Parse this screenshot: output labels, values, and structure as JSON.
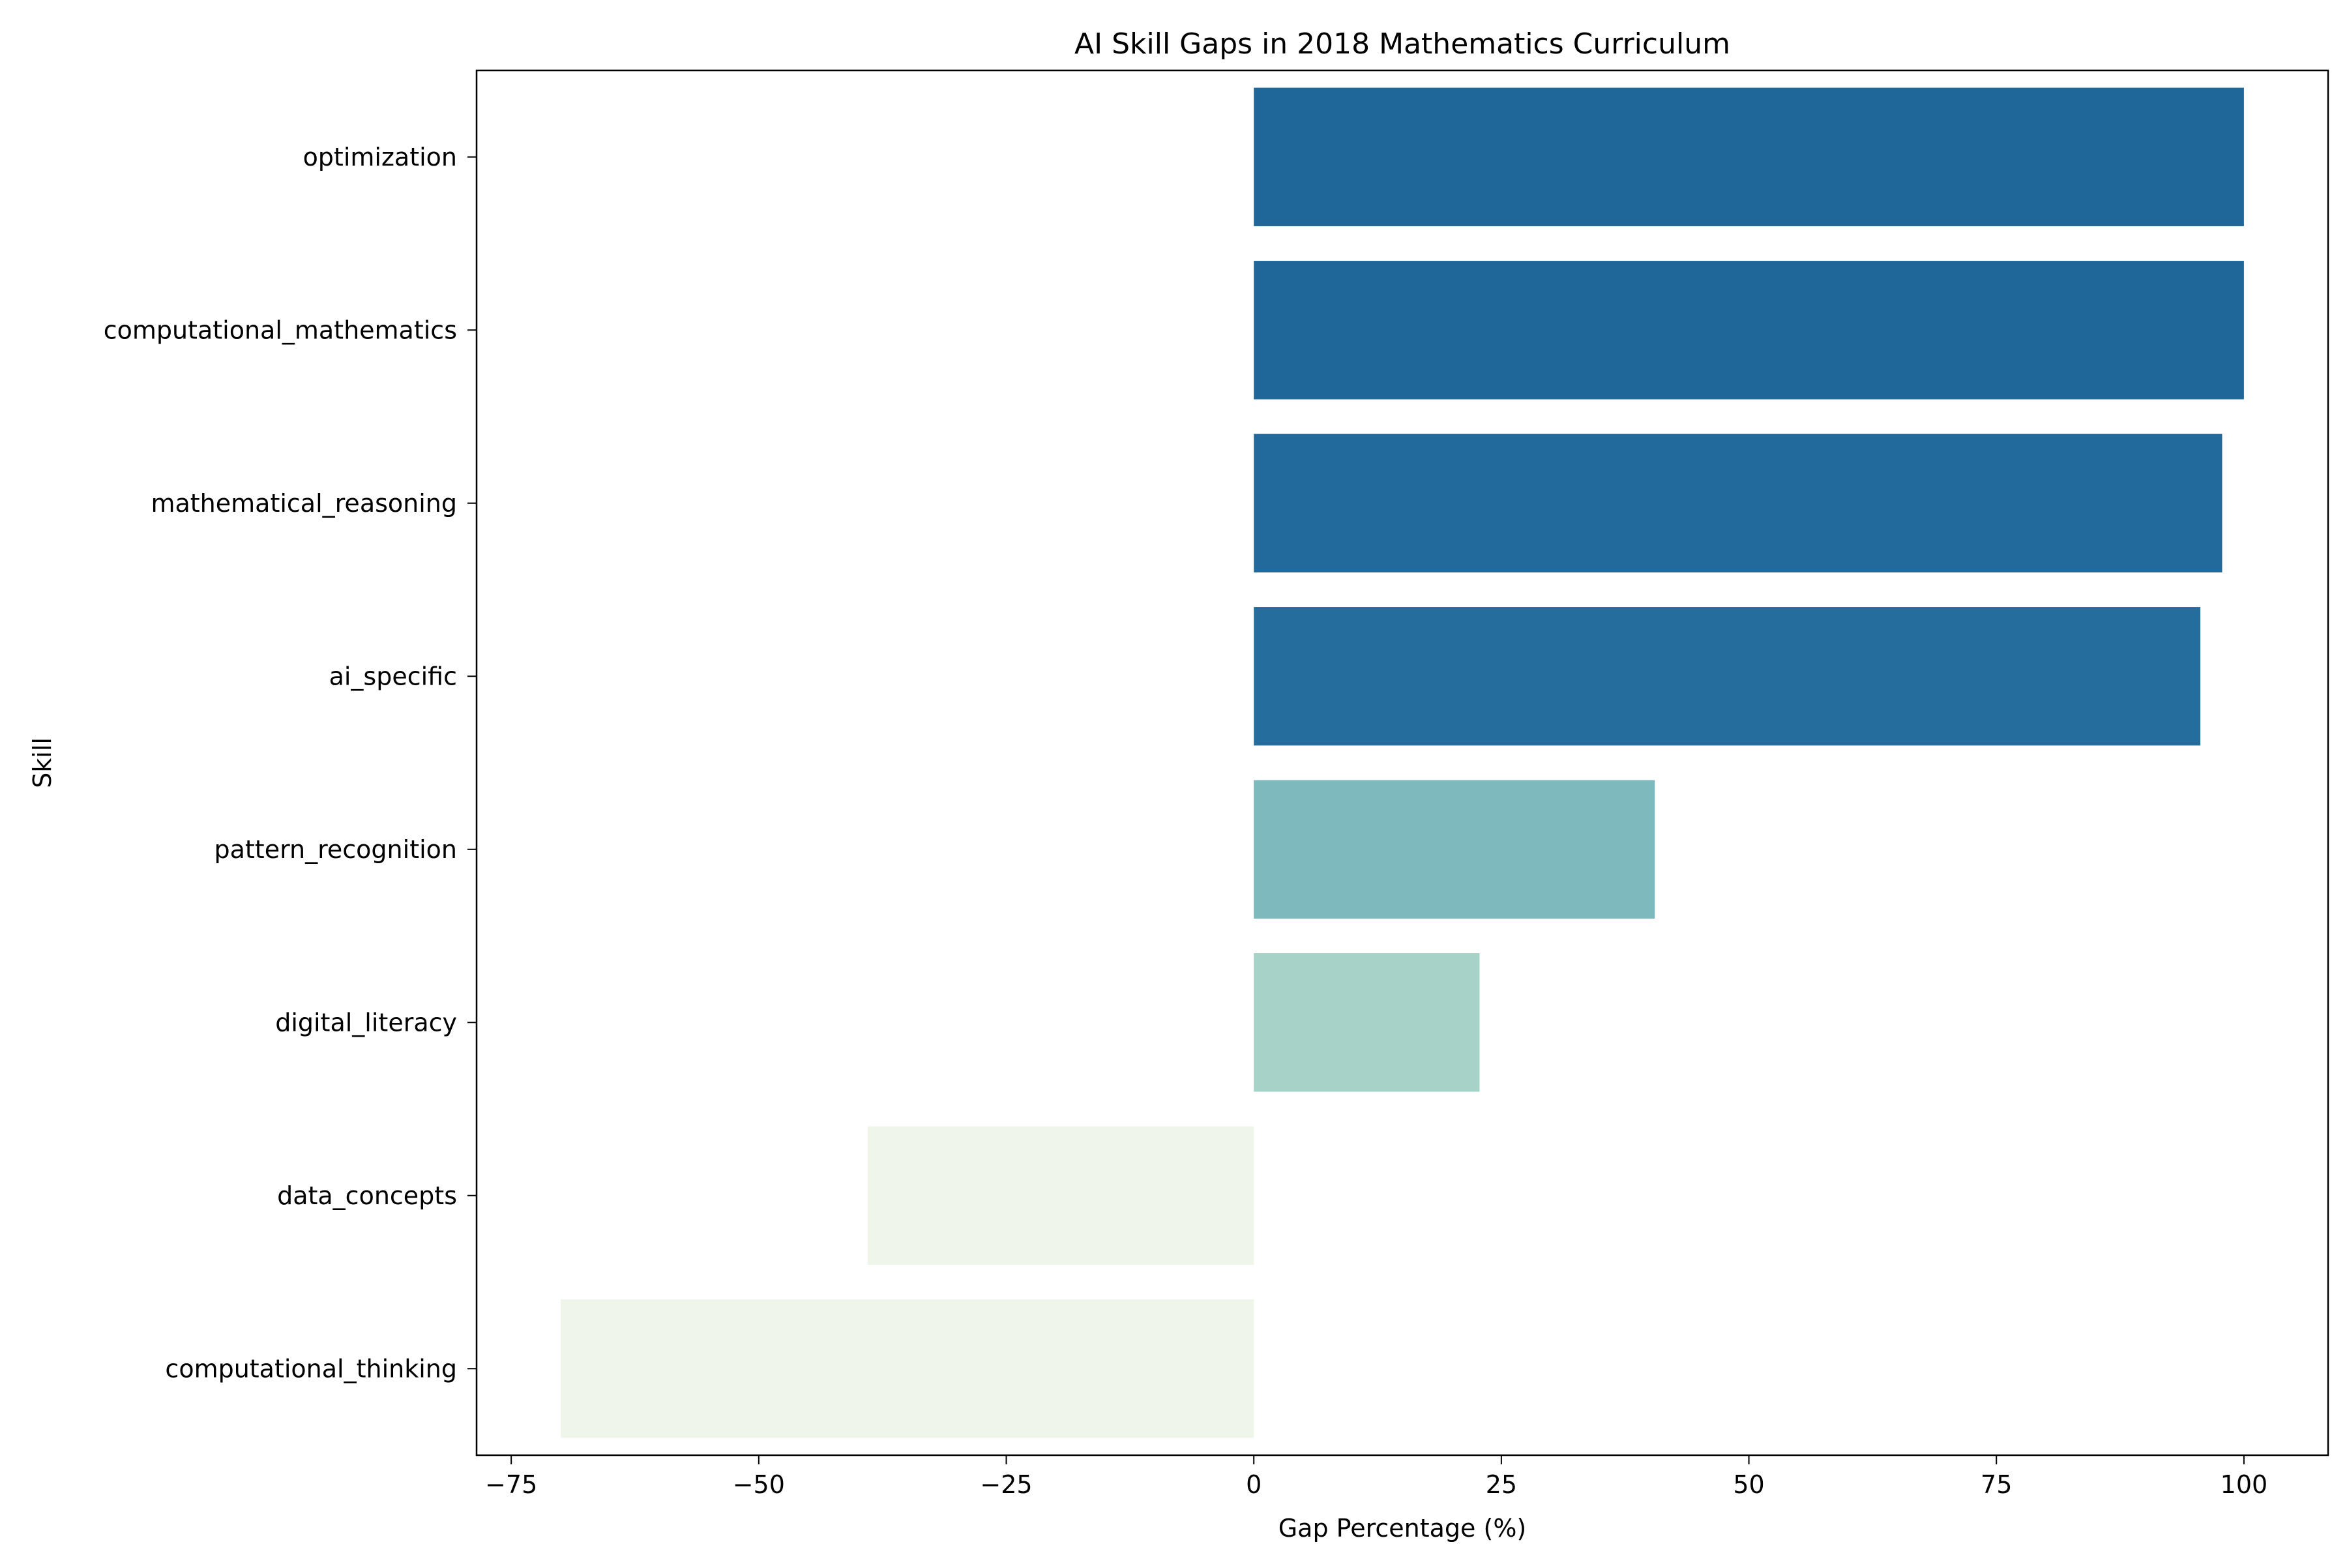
{
  "chart_data": {
    "type": "bar",
    "orientation": "horizontal",
    "title": "AI Skill Gaps in 2018 Mathematics Curriculum",
    "xlabel": "Gap Percentage (%)",
    "ylabel": "Skill",
    "xlim": [
      -78.5,
      108.5
    ],
    "xticks": [
      -75,
      -50,
      -25,
      0,
      25,
      50,
      75,
      100
    ],
    "xtick_labels": [
      "−75",
      "−50",
      "−25",
      "0",
      "25",
      "50",
      "75",
      "100"
    ],
    "categories": [
      "optimization",
      "computational_mathematics",
      "mathematical_reasoning",
      "ai_specific",
      "pattern_recognition",
      "digital_literacy",
      "data_concepts",
      "computational_thinking"
    ],
    "values": [
      100,
      100,
      97.8,
      95.6,
      40.5,
      22.8,
      -39,
      -70
    ],
    "colors": [
      "#1f6699",
      "#1f6699",
      "#216a9b",
      "#246d9d",
      "#7db9bd",
      "#a6d2c8",
      "#eff6e9",
      "#eff6e9"
    ],
    "grid": false,
    "legend": "none"
  }
}
